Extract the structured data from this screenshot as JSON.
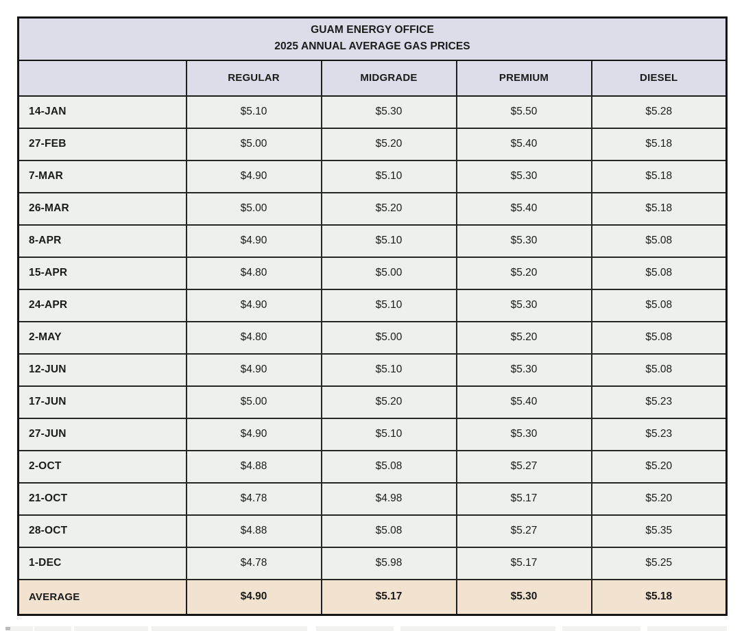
{
  "chart_data": {
    "type": "table",
    "title": "GUAM ENERGY OFFICE",
    "subtitle": "2025 ANNUAL AVERAGE GAS PRICES",
    "row_header_label": "",
    "columns": [
      "REGULAR",
      "MIDGRADE",
      "PREMIUM",
      "DIESEL"
    ],
    "rows": [
      {
        "date": "14-JAN",
        "values": [
          "$5.10",
          "$5.30",
          "$5.50",
          "$5.28"
        ]
      },
      {
        "date": "27-FEB",
        "values": [
          "$5.00",
          "$5.20",
          "$5.40",
          "$5.18"
        ]
      },
      {
        "date": "7-MAR",
        "values": [
          "$4.90",
          "$5.10",
          "$5.30",
          "$5.18"
        ]
      },
      {
        "date": "26-MAR",
        "values": [
          "$5.00",
          "$5.20",
          "$5.40",
          "$5.18"
        ]
      },
      {
        "date": "8-APR",
        "values": [
          "$4.90",
          "$5.10",
          "$5.30",
          "$5.08"
        ]
      },
      {
        "date": "15-APR",
        "values": [
          "$4.80",
          "$5.00",
          "$5.20",
          "$5.08"
        ]
      },
      {
        "date": "24-APR",
        "values": [
          "$4.90",
          "$5.10",
          "$5.30",
          "$5.08"
        ]
      },
      {
        "date": "2-MAY",
        "values": [
          "$4.80",
          "$5.00",
          "$5.20",
          "$5.08"
        ]
      },
      {
        "date": "12-JUN",
        "values": [
          "$4.90",
          "$5.10",
          "$5.30",
          "$5.08"
        ]
      },
      {
        "date": "17-JUN",
        "values": [
          "$5.00",
          "$5.20",
          "$5.40",
          "$5.23"
        ]
      },
      {
        "date": "27-JUN",
        "values": [
          "$4.90",
          "$5.10",
          "$5.30",
          "$5.23"
        ]
      },
      {
        "date": "2-OCT",
        "values": [
          "$4.88",
          "$5.08",
          "$5.27",
          "$5.20"
        ]
      },
      {
        "date": "21-OCT",
        "values": [
          "$4.78",
          "$4.98",
          "$5.17",
          "$5.20"
        ]
      },
      {
        "date": "28-OCT",
        "values": [
          "$4.88",
          "$5.08",
          "$5.27",
          "$5.35"
        ]
      },
      {
        "date": "1-DEC",
        "values": [
          "$4.78",
          "$5.98",
          "$5.17",
          "$5.25"
        ]
      }
    ],
    "average": {
      "label": "AVERAGE",
      "values": [
        "$4.90",
        "$5.17",
        "$5.30",
        "$5.18"
      ]
    }
  },
  "colors": {
    "header_bg": "#dcdde8",
    "data_row_bg": "#eef0ee",
    "average_row_bg": "#f2e2d0",
    "border": "#141414",
    "text": "#1a1a1a"
  }
}
